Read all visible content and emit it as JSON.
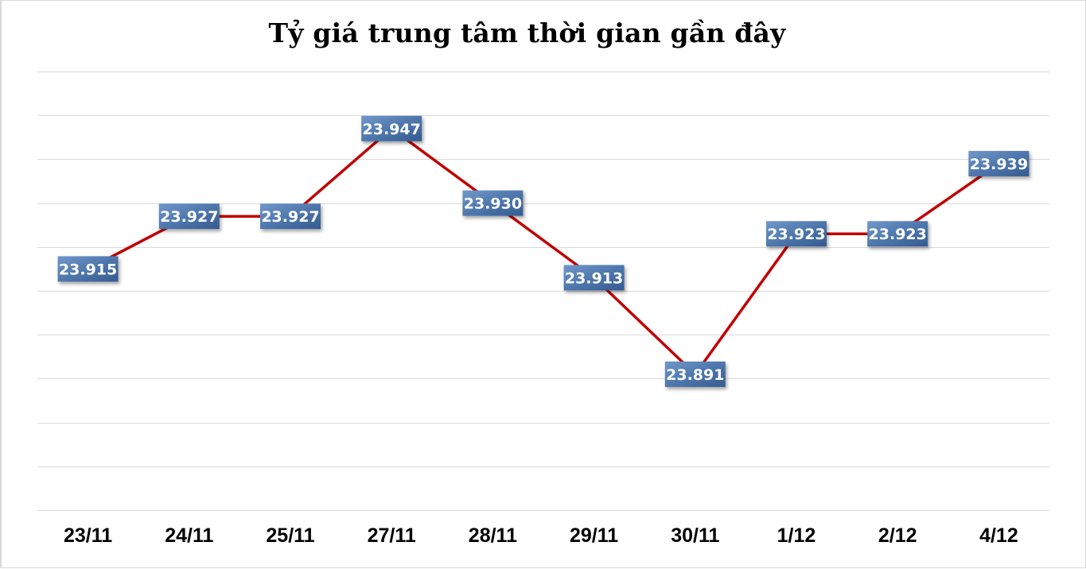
{
  "chart_data": {
    "type": "line",
    "title": "Tỷ giá trung tâm thời gian gần đây",
    "xlabel": "",
    "ylabel": "",
    "categories": [
      "23/11",
      "24/11",
      "25/11",
      "27/11",
      "28/11",
      "29/11",
      "30/11",
      "1/12",
      "2/12",
      "4/12"
    ],
    "series": [
      {
        "name": "Tỷ giá trung tâm",
        "values": [
          23.915,
          23.927,
          23.927,
          23.947,
          23.93,
          23.913,
          23.891,
          23.923,
          23.923,
          23.939
        ],
        "labels": [
          "23.915",
          "23.927",
          "23.927",
          "23.947",
          "23.930",
          "23.913",
          "23.891",
          "23.923",
          "23.923",
          "23.939"
        ]
      }
    ],
    "ylim": [
      23.86,
      23.96
    ],
    "ytick_step": 0.01,
    "y_tick_labels_visible": false,
    "grid": true,
    "legend": "none",
    "colors": {
      "line": "#c00000",
      "label_bg_top": "#6d93c4",
      "label_bg_bottom": "#3b6296",
      "label_text": "#ffffff",
      "grid": "#d9d9d9"
    }
  }
}
